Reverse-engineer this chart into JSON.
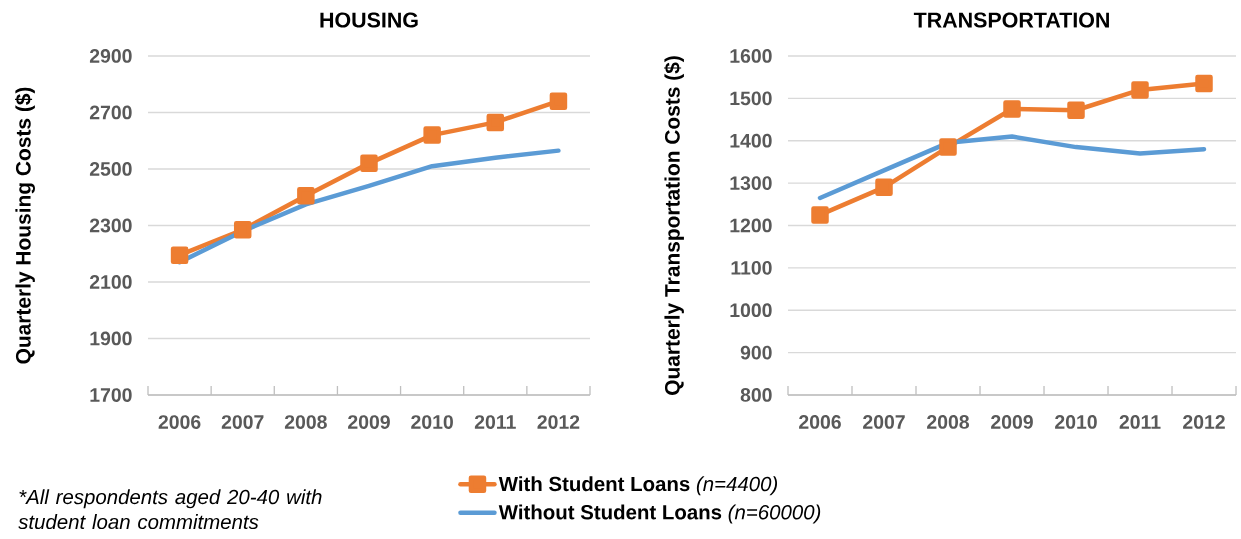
{
  "chart_data": [
    {
      "type": "line",
      "title": "HOUSING",
      "ylabel": "Quarterly Housing Costs ($)",
      "categories": [
        "2006",
        "2007",
        "2008",
        "2009",
        "2010",
        "2011",
        "2012"
      ],
      "series": [
        {
          "name": "**With Student Loans** *(n=4400)*",
          "color": "#ed7d31",
          "marker": "square",
          "values": [
            2195,
            2285,
            2405,
            2520,
            2620,
            2665,
            2740
          ]
        },
        {
          "name": "**Without Student Loans** *(n=60000)*",
          "color": "#5b9bd5",
          "marker": "none",
          "values": [
            2170,
            2280,
            2375,
            2440,
            2510,
            2540,
            2565
          ]
        }
      ],
      "ylim": [
        1700,
        2900
      ],
      "yticks": [
        1700,
        1900,
        2100,
        2300,
        2500,
        2700,
        2900
      ],
      "grid": "y",
      "legend": "bottom",
      "annotations": [
        "*All respondents aged 20-40 with student loan commitments"
      ]
    },
    {
      "type": "line",
      "title": "TRANSPORTATION",
      "ylabel": "Quarterly Transportation Costs ($)",
      "categories": [
        "2006",
        "2007",
        "2008",
        "2009",
        "2010",
        "2011",
        "2012"
      ],
      "series": [
        {
          "color": "#ed7d31",
          "marker": "square",
          "values": [
            1225,
            1290,
            1385,
            1475,
            1472,
            1520,
            1535
          ]
        },
        {
          "color": "#5b9bd5",
          "marker": "none",
          "values": [
            1265,
            1330,
            1395,
            1410,
            1385,
            1370,
            1380
          ]
        }
      ],
      "ylim": [
        800,
        1600
      ],
      "yticks": [
        800,
        900,
        1000,
        1100,
        1200,
        1300,
        1400,
        1500,
        1600
      ],
      "grid": "y"
    }
  ]
}
